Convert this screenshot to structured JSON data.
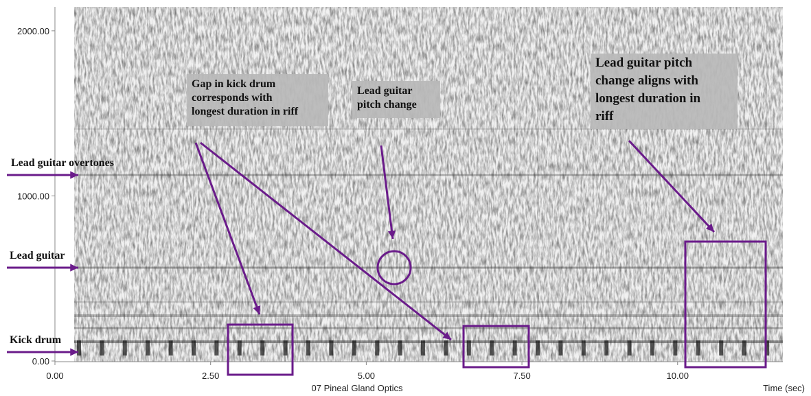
{
  "chart_data": {
    "type": "spectrogram",
    "x_label": "07 Pineal Gland Optics",
    "x_unit_label": "Time (sec)",
    "xlim": [
      0,
      11.69
    ],
    "ylim": [
      0,
      2145
    ],
    "xticks": [
      {
        "value": 0,
        "label": "0.00"
      },
      {
        "value": 2.5,
        "label": "2.50"
      },
      {
        "value": 5,
        "label": "5.00"
      },
      {
        "value": 7.5,
        "label": "7.50"
      },
      {
        "value": 10,
        "label": "10.00"
      }
    ],
    "yticks": [
      {
        "value": 0,
        "label": "0.00"
      },
      {
        "value": 1000,
        "label": "1000.00"
      },
      {
        "value": 2000,
        "label": "2000.00"
      }
    ],
    "band_labels": [
      "Lead guitar overtones",
      "Lead guitar",
      "Kick drum"
    ],
    "annotations": [
      [
        "Gap in kick drum",
        "corresponds with",
        "longest duration in riff"
      ],
      [
        "Lead guitar",
        "pitch change"
      ],
      [
        "Lead guitar pitch",
        "change aligns with",
        "longest duration in",
        "riff"
      ]
    ],
    "color": "#6a1b8a"
  }
}
